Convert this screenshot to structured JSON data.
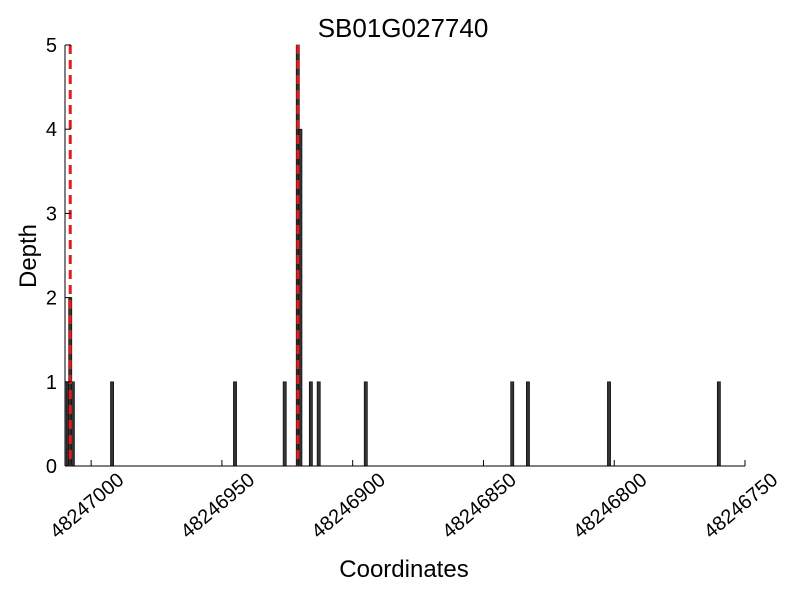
{
  "chart_data": {
    "type": "bar",
    "title": "SB01G027740",
    "xlabel": "Coordinates",
    "ylabel": "Depth",
    "x_reversed": true,
    "xlim": [
      48247010,
      48246750
    ],
    "ylim": [
      0,
      5
    ],
    "xticks": [
      48247000,
      48246950,
      48246900,
      48246850,
      48246800,
      48246750
    ],
    "xtick_labels": [
      "48247000",
      "48246950",
      "48246900",
      "48246850",
      "48246800",
      "48246750"
    ],
    "yticks": [
      0,
      1,
      2,
      3,
      4,
      5
    ],
    "ytick_labels": [
      "0",
      "1",
      "2",
      "3",
      "4",
      "5"
    ],
    "bar_color": "#333333",
    "bars": [
      {
        "x": 48247009,
        "value": 1
      },
      {
        "x": 48247008,
        "value": 2
      },
      {
        "x": 48247007,
        "value": 1
      },
      {
        "x": 48246992,
        "value": 1
      },
      {
        "x": 48246945,
        "value": 1
      },
      {
        "x": 48246926,
        "value": 1
      },
      {
        "x": 48246921,
        "value": 5
      },
      {
        "x": 48246920,
        "value": 4
      },
      {
        "x": 48246916,
        "value": 1
      },
      {
        "x": 48246913,
        "value": 1
      },
      {
        "x": 48246895,
        "value": 1
      },
      {
        "x": 48246839,
        "value": 1
      },
      {
        "x": 48246833,
        "value": 1
      },
      {
        "x": 48246802,
        "value": 1
      },
      {
        "x": 48246760,
        "value": 1
      }
    ],
    "reference_lines": [
      {
        "x": 48247008,
        "color": "#e41a1c",
        "style": "dashed"
      },
      {
        "x": 48246921,
        "color": "#e41a1c",
        "style": "dashed"
      }
    ],
    "grid": false,
    "legend": "none"
  }
}
